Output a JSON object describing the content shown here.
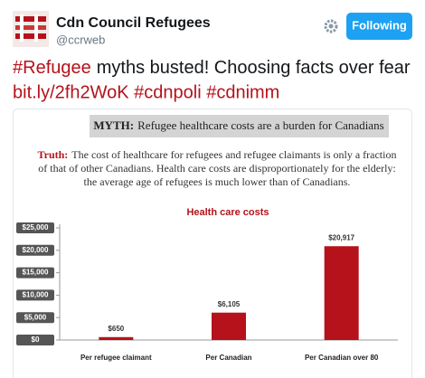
{
  "tweet": {
    "name": "Cdn Council Refugees",
    "handle": "@ccrweb",
    "button": "Following",
    "text": {
      "hashtag": "#Refugee",
      "rest": "myths busted! Choosing facts over fear",
      "links": "bit.ly/2fh2WoK #cdnpoli #cdnimm"
    }
  },
  "image": {
    "myth": {
      "label": "MYTH:",
      "text": "Refugee healthcare costs are a burden for Canadians"
    },
    "truth": {
      "label": "Truth:",
      "lines": [
        "The cost of healthcare for refugees and refugee claimants is only a fraction",
        "of that of other Canadians. Health care costs are disproportionately for the elderly:",
        "the average age of refugees is much lower than of Canadians."
      ]
    }
  },
  "chart_data": {
    "type": "bar",
    "title": "Health care costs",
    "categories": [
      "Per refugee claimant",
      "Per Canadian",
      "Per Canadian over 80"
    ],
    "values": [
      650,
      6105,
      20917
    ],
    "value_labels": [
      "$650",
      "$6,105",
      "$20,917"
    ],
    "color": "#b5121b",
    "ylim": [
      0,
      25000
    ],
    "yticks": [
      {
        "value": 0,
        "label": "$0"
      },
      {
        "value": 5000,
        "label": "$5,000"
      },
      {
        "value": 10000,
        "label": "$10,000"
      },
      {
        "value": 15000,
        "label": "$15,000"
      },
      {
        "value": 20000,
        "label": "$20,000"
      },
      {
        "value": 25000,
        "label": "$25,000"
      }
    ],
    "grid": false
  }
}
